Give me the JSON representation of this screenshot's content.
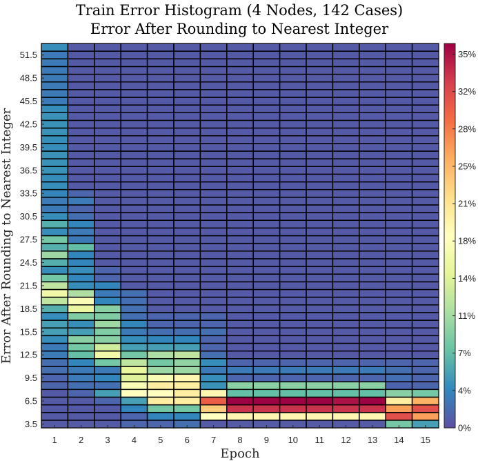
{
  "chart_data": {
    "type": "heatmap",
    "title": "Train Error Histogram (4 Nodes, 142 Cases)",
    "subtitle": "Error After Rounding to Nearest Integer",
    "xlabel": "Epoch",
    "ylabel": "Error After Rounding to Nearest Integer",
    "x": [
      1,
      2,
      3,
      4,
      5,
      6,
      7,
      8,
      9,
      10,
      11,
      12,
      13,
      14,
      15
    ],
    "y": [
      3,
      4,
      5,
      6,
      7,
      8,
      9,
      10,
      11,
      12,
      13,
      14,
      15,
      16,
      17,
      18,
      19,
      20,
      21,
      22,
      23,
      24,
      25,
      26,
      27,
      28,
      29,
      30,
      31,
      32,
      33,
      34,
      35,
      36,
      37,
      38,
      39,
      40,
      41,
      42,
      43,
      44,
      45,
      46,
      47,
      48,
      49,
      50,
      51,
      52
    ],
    "ytick_labels": [
      "3.5",
      "6.5",
      "9.5",
      "12.5",
      "15.5",
      "18.5",
      "21.5",
      "24.5",
      "27.5",
      "30.5",
      "33.5",
      "36.5",
      "39.5",
      "42.5",
      "45.5",
      "48.5",
      "51.5"
    ],
    "colorbar": {
      "colormap": "spectral",
      "range": [
        0,
        36
      ],
      "tick_values": [
        0,
        3.5,
        7,
        10.5,
        14,
        17.5,
        21,
        24.5,
        28,
        31.5,
        35
      ],
      "tick_labels": [
        "0%",
        "4%",
        "7%",
        "11%",
        "14%",
        "18%",
        "21%",
        "25%",
        "28%",
        "32%",
        "35%"
      ]
    },
    "columns": [
      {
        "epoch": 1,
        "values": [
          0.7,
          0.7,
          0.7,
          0.7,
          0.7,
          1.4,
          1.4,
          2,
          2,
          2.8,
          2.8,
          4,
          5,
          5,
          4,
          6,
          12,
          16,
          12,
          8,
          4,
          6,
          10,
          6,
          8,
          4,
          6,
          4,
          2.8,
          2.8,
          3.5,
          4,
          4,
          4.2,
          4.2,
          4.2,
          4,
          4,
          4.2,
          4.2,
          4.2,
          4,
          2.8,
          2.8,
          2.8,
          2.8,
          2.8,
          2.8,
          2.8,
          4
        ]
      },
      {
        "epoch": 2,
        "values": [
          0.7,
          0.7,
          0.7,
          0.7,
          1.4,
          2.1,
          2.8,
          2.8,
          3.5,
          7,
          8,
          9,
          5,
          4,
          8.5,
          15,
          17,
          11,
          4,
          3.5,
          4,
          3.5,
          3.5,
          7,
          2.8,
          2.8,
          3.5,
          2.1,
          1.4,
          2.8,
          1.4,
          0.7,
          0.7,
          0.7,
          0.7,
          0.7,
          0.7,
          0.7,
          0.7,
          0.7,
          0.7,
          0.7,
          0.7,
          0.7,
          0.7,
          0.7,
          0.7,
          0.7,
          0.7,
          0.7
        ]
      },
      {
        "epoch": 3,
        "values": [
          0.7,
          0.7,
          0.7,
          1.4,
          5,
          2.1,
          3.5,
          2.8,
          8,
          16,
          13,
          9,
          8.5,
          10,
          8.5,
          9,
          3.5,
          2.8,
          3.5,
          1.4,
          1.4,
          0.7,
          0.7,
          0.7,
          0.7,
          0.7,
          0.7,
          0.7,
          0.7,
          0.7,
          0.7,
          0.7,
          0.7,
          0.7,
          0.7,
          0.7,
          0.7,
          0.7,
          0.7,
          0.7,
          0.7,
          0.7,
          0.7,
          0.7,
          0.7,
          0.7,
          0.7,
          0.7,
          0.7,
          0.7
        ]
      },
      {
        "epoch": 4,
        "values": [
          1.4,
          1.4,
          3.5,
          5,
          18,
          17,
          14,
          15,
          12,
          8,
          5,
          4,
          2.8,
          3.5,
          2.1,
          2.1,
          2.1,
          2.1,
          0.7,
          0.7,
          0.7,
          0.7,
          0.7,
          0.7,
          0.7,
          0.7,
          0.7,
          0.7,
          0.7,
          0.7,
          0.7,
          0.7,
          0.7,
          0.7,
          0.7,
          0.7,
          0.7,
          0.7,
          0.7,
          0.7,
          0.7,
          0.7,
          0.7,
          0.7,
          0.7,
          0.7,
          0.7,
          0.7,
          0.7,
          0.7
        ]
      },
      {
        "epoch": 5,
        "values": [
          1.4,
          3.5,
          8,
          20,
          18,
          20,
          17,
          10,
          8,
          11,
          5,
          3.5,
          2.1,
          1.4,
          1.4,
          0.7,
          0.7,
          0.7,
          0.7,
          0.7,
          0.7,
          0.7,
          0.7,
          0.7,
          0.7,
          0.7,
          0.7,
          0.7,
          0.7,
          0.7,
          0.7,
          0.7,
          0.7,
          0.7,
          0.7,
          0.7,
          0.7,
          0.7,
          0.7,
          0.7,
          0.7,
          0.7,
          0.7,
          0.7,
          0.7,
          0.7,
          0.7,
          0.7,
          0.7,
          0.7
        ]
      },
      {
        "epoch": 6,
        "values": [
          2.1,
          3.5,
          8,
          20,
          20,
          20,
          19,
          10,
          9.5,
          12,
          5,
          3.5,
          2.1,
          1.4,
          1.4,
          0.7,
          0.7,
          0.7,
          0.7,
          0.7,
          0.7,
          0.7,
          0.7,
          0.7,
          0.7,
          0.7,
          0.7,
          0.7,
          0.7,
          0.7,
          0.7,
          0.7,
          0.7,
          0.7,
          0.7,
          0.7,
          0.7,
          0.7,
          0.7,
          0.7,
          0.7,
          0.7,
          0.7,
          0.7,
          0.7,
          0.7,
          0.7,
          0.7,
          0.7,
          0.7
        ]
      },
      {
        "epoch": 7,
        "values": [
          0.7,
          18,
          23,
          30,
          19,
          4.2,
          4,
          2.8,
          4,
          2.1,
          1.4,
          1.4,
          2.1,
          1.4,
          1.4,
          0.7,
          0.7,
          0.7,
          0.7,
          0.7,
          0.7,
          0.7,
          0.7,
          0.7,
          0.7,
          0.7,
          0.7,
          0.7,
          0.7,
          0.7,
          0.7,
          0.7,
          0.7,
          0.7,
          0.7,
          0.7,
          0.7,
          0.7,
          0.7,
          0.7,
          0.7,
          0.7,
          0.7,
          0.7,
          0.7,
          0.7,
          0.7,
          0.7,
          0.7,
          0.7
        ]
      },
      {
        "epoch": 8,
        "values": [
          0.7,
          19,
          33,
          36,
          7,
          9,
          1.4,
          2.8,
          1.4,
          0.7,
          0.7,
          0.7,
          0.7,
          0.7,
          0.7,
          0.7,
          0.7,
          0.7,
          0.7,
          0.7,
          0.7,
          0.7,
          0.7,
          0.7,
          0.7,
          0.7,
          0.7,
          0.7,
          0.7,
          0.7,
          0.7,
          0.7,
          0.7,
          0.7,
          0.7,
          0.7,
          0.7,
          0.7,
          0.7,
          0.7,
          0.7,
          0.7,
          0.7,
          0.7,
          0.7,
          0.7,
          0.7,
          0.7,
          0.7,
          0.7
        ]
      },
      {
        "epoch": 9,
        "values": [
          0.7,
          19,
          33,
          36,
          7,
          9,
          1.4,
          2.8,
          1.4,
          0.7,
          0.7,
          0.7,
          0.7,
          0.7,
          0.7,
          0.7,
          0.7,
          0.7,
          0.7,
          0.7,
          0.7,
          0.7,
          0.7,
          0.7,
          0.7,
          0.7,
          0.7,
          0.7,
          0.7,
          0.7,
          0.7,
          0.7,
          0.7,
          0.7,
          0.7,
          0.7,
          0.7,
          0.7,
          0.7,
          0.7,
          0.7,
          0.7,
          0.7,
          0.7,
          0.7,
          0.7,
          0.7,
          0.7,
          0.7,
          0.7
        ]
      },
      {
        "epoch": 10,
        "values": [
          0.7,
          19,
          33,
          36,
          7,
          9,
          1.4,
          2.8,
          1.4,
          0.7,
          0.7,
          0.7,
          0.7,
          0.7,
          0.7,
          0.7,
          0.7,
          0.7,
          0.7,
          0.7,
          0.7,
          0.7,
          0.7,
          0.7,
          0.7,
          0.7,
          0.7,
          0.7,
          0.7,
          0.7,
          0.7,
          0.7,
          0.7,
          0.7,
          0.7,
          0.7,
          0.7,
          0.7,
          0.7,
          0.7,
          0.7,
          0.7,
          0.7,
          0.7,
          0.7,
          0.7,
          0.7,
          0.7,
          0.7,
          0.7
        ]
      },
      {
        "epoch": 11,
        "values": [
          0.7,
          19,
          33,
          36,
          7,
          9,
          1.4,
          2.8,
          1.4,
          0.7,
          0.7,
          0.7,
          0.7,
          0.7,
          0.7,
          0.7,
          0.7,
          0.7,
          0.7,
          0.7,
          0.7,
          0.7,
          0.7,
          0.7,
          0.7,
          0.7,
          0.7,
          0.7,
          0.7,
          0.7,
          0.7,
          0.7,
          0.7,
          0.7,
          0.7,
          0.7,
          0.7,
          0.7,
          0.7,
          0.7,
          0.7,
          0.7,
          0.7,
          0.7,
          0.7,
          0.7,
          0.7,
          0.7,
          0.7,
          0.7
        ]
      },
      {
        "epoch": 12,
        "values": [
          0.7,
          19,
          33,
          35,
          7,
          9,
          1.4,
          2.8,
          1.4,
          0.7,
          0.7,
          0.7,
          0.7,
          0.7,
          0.7,
          0.7,
          0.7,
          0.7,
          0.7,
          0.7,
          0.7,
          0.7,
          0.7,
          0.7,
          0.7,
          0.7,
          0.7,
          0.7,
          0.7,
          0.7,
          0.7,
          0.7,
          0.7,
          0.7,
          0.7,
          0.7,
          0.7,
          0.7,
          0.7,
          0.7,
          0.7,
          0.7,
          0.7,
          0.7,
          0.7,
          0.7,
          0.7,
          0.7,
          0.7,
          0.7
        ]
      },
      {
        "epoch": 13,
        "values": [
          0.7,
          19,
          33,
          36,
          7,
          9,
          1.4,
          2.8,
          1.4,
          0.7,
          0.7,
          0.7,
          0.7,
          0.7,
          0.7,
          0.7,
          0.7,
          0.7,
          0.7,
          0.7,
          0.7,
          0.7,
          0.7,
          0.7,
          0.7,
          0.7,
          0.7,
          0.7,
          0.7,
          0.7,
          0.7,
          0.7,
          0.7,
          0.7,
          0.7,
          0.7,
          0.7,
          0.7,
          0.7,
          0.7,
          0.7,
          0.7,
          0.7,
          0.7,
          0.7,
          0.7,
          0.7,
          0.7,
          0.7,
          0.7
        ]
      },
      {
        "epoch": 14,
        "values": [
          8,
          31,
          26,
          20,
          9,
          1.4,
          2.1,
          2.1,
          1.4,
          0.7,
          0.7,
          0.7,
          0.7,
          0.7,
          0.7,
          0.7,
          0.7,
          0.7,
          0.7,
          0.7,
          0.7,
          0.7,
          0.7,
          0.7,
          0.7,
          0.7,
          0.7,
          0.7,
          0.7,
          0.7,
          0.7,
          0.7,
          0.7,
          0.7,
          0.7,
          0.7,
          0.7,
          0.7,
          0.7,
          0.7,
          0.7,
          0.7,
          0.7,
          0.7,
          0.7,
          0.7,
          0.7,
          0.7,
          0.7,
          0.7
        ]
      },
      {
        "epoch": 15,
        "values": [
          5,
          26,
          31,
          25,
          8,
          1.4,
          1.4,
          1.4,
          1.4,
          0.7,
          0.7,
          0.7,
          0.7,
          0.7,
          0.7,
          0.7,
          0.7,
          0.7,
          0.7,
          0.7,
          0.7,
          0.7,
          0.7,
          0.7,
          0.7,
          0.7,
          0.7,
          0.7,
          0.7,
          0.7,
          0.7,
          0.7,
          0.7,
          0.7,
          0.7,
          0.7,
          0.7,
          0.7,
          0.7,
          0.7,
          0.7,
          0.7,
          0.7,
          0.7,
          0.7,
          0.7,
          0.7,
          0.7,
          0.7,
          0.7
        ]
      }
    ]
  }
}
